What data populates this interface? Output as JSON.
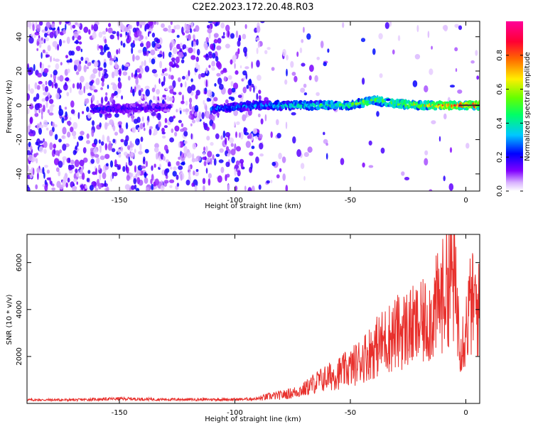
{
  "page_title": "C2E2.2023.172.20.48.R03",
  "chart_data": [
    {
      "type": "heatmap",
      "title": "C2E2.2023.172.20.48.R03",
      "xlabel": "Height of straight line (km)",
      "ylabel": "Frequency (Hz)",
      "xlim": [
        -190,
        6
      ],
      "ylim": [
        -50,
        49
      ],
      "xticks": [
        -150,
        -100,
        -50,
        0
      ],
      "yticks": [
        40,
        20,
        0,
        -20,
        -40
      ],
      "colorbar": {
        "label": "Normalized spectral amplitude",
        "range": [
          0,
          1
        ],
        "ticks": [
          0.0,
          0.2,
          0.4,
          0.6,
          0.8
        ],
        "colormap": [
          "#ffffff",
          "#8000ff",
          "#0000ff",
          "#00c8ff",
          "#00ff66",
          "#aaff00",
          "#ffee00",
          "#ff6600",
          "#ff0033",
          "#ff0099"
        ]
      },
      "ridge": {
        "description_free_values": true,
        "x": [
          -160,
          -140,
          -120,
          -108,
          -90,
          -70,
          -50,
          -40,
          -30,
          -20,
          -10,
          0,
          6
        ],
        "y": [
          -2,
          -1.5,
          -1,
          -2,
          0,
          0,
          0,
          3,
          1,
          0,
          0,
          0,
          0
        ],
        "peak_amplitude": [
          0.25,
          0.2,
          0.18,
          0.3,
          0.35,
          0.5,
          0.55,
          0.65,
          0.6,
          0.7,
          0.85,
          0.95,
          0.95
        ]
      },
      "grid": false
    },
    {
      "type": "line",
      "xlabel": "Height of straight line (km)",
      "ylabel": "SNR (10 * v/v)",
      "xlim": [
        -190,
        6
      ],
      "ylim": [
        0,
        7200
      ],
      "xticks": [
        -150,
        -100,
        -50,
        0
      ],
      "yticks": [
        6000,
        4000,
        2000
      ],
      "series": [
        {
          "color": "#e8302c",
          "x": [
            -190,
            -170,
            -150,
            -130,
            -110,
            -100,
            -90,
            -85,
            -80,
            -75,
            -70,
            -65,
            -60,
            -55,
            -50,
            -45,
            -40,
            -35,
            -30,
            -25,
            -20,
            -15,
            -10,
            -8,
            -6,
            -4,
            -2,
            0,
            2,
            4,
            6
          ],
          "y": [
            150,
            150,
            200,
            170,
            170,
            170,
            200,
            300,
            350,
            450,
            600,
            900,
            1100,
            1300,
            1500,
            1900,
            2300,
            2700,
            3000,
            3200,
            3300,
            3700,
            4600,
            5200,
            5600,
            4200,
            2600,
            3200,
            4200,
            4200,
            3900
          ]
        }
      ],
      "grid": false
    }
  ]
}
